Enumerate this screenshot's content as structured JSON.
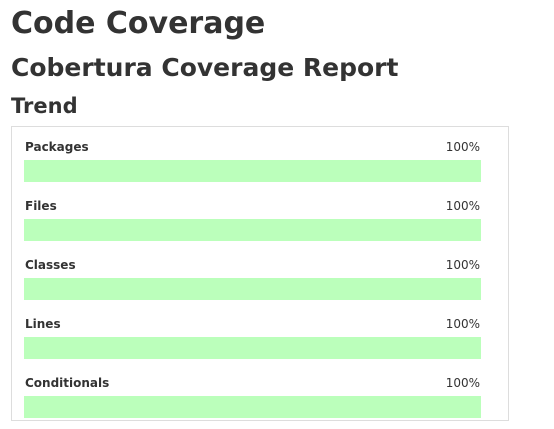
{
  "page": {
    "title": "Code Coverage",
    "subtitle": "Cobertura Coverage Report",
    "section": "Trend"
  },
  "colors": {
    "bar_fill": "#bbffbb",
    "text": "#333333",
    "panel_border": "#dddddd"
  },
  "metrics": [
    {
      "label": "Packages",
      "value": "100%",
      "fraction": 1.0
    },
    {
      "label": "Files",
      "value": "100%",
      "fraction": 1.0
    },
    {
      "label": "Classes",
      "value": "100%",
      "fraction": 1.0
    },
    {
      "label": "Lines",
      "value": "100%",
      "fraction": 1.0
    },
    {
      "label": "Conditionals",
      "value": "100%",
      "fraction": 1.0
    }
  ]
}
